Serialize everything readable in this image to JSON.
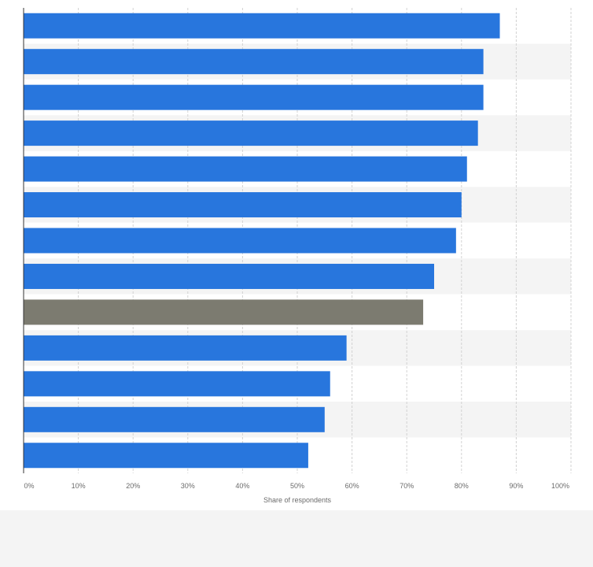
{
  "chart_data": {
    "type": "bar",
    "orientation": "horizontal",
    "xlabel": "Share of respondents",
    "xlim": [
      0,
      100
    ],
    "ticks": [
      "0%",
      "10%",
      "20%",
      "30%",
      "40%",
      "50%",
      "60%",
      "70%",
      "80%",
      "90%",
      "100%"
    ],
    "grid": true,
    "values": [
      87,
      84,
      84,
      83,
      81,
      80,
      79,
      75,
      73,
      59,
      56,
      55,
      52
    ],
    "highlight_index": 8,
    "colors": {
      "bar": "#2876dd",
      "highlight": "#7c7b70",
      "band_a": "#ffffff",
      "band_b": "#f4f4f4",
      "grid": "#d2d2d2",
      "axis": "#333333"
    }
  }
}
